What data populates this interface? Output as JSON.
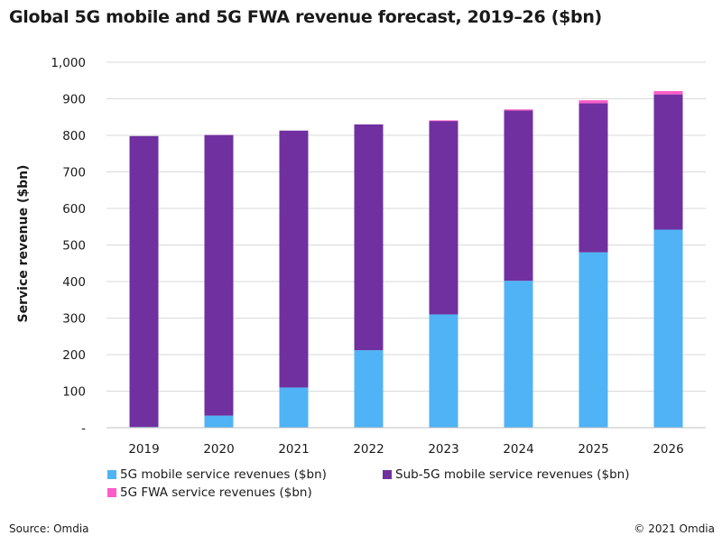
{
  "title": "Global 5G mobile and 5G FWA revenue forecast, 2019–26 ($bn)",
  "source": "Source: Omdia",
  "copyright": "© 2021 Omdia",
  "chart_data": {
    "type": "bar",
    "stacked": true,
    "title": "Global 5G mobile and 5G FWA revenue forecast, 2019–26 ($bn)",
    "xlabel": "",
    "ylabel": "Service revenue ($bn)",
    "ylim": [
      0,
      1000
    ],
    "yticks": [
      0,
      100,
      200,
      300,
      400,
      500,
      600,
      700,
      800,
      900,
      1000
    ],
    "ytick_labels": [
      "-",
      "100",
      "200",
      "300",
      "400",
      "500",
      "600",
      "700",
      "800",
      "900",
      "1,000"
    ],
    "categories": [
      "2019",
      "2020",
      "2021",
      "2022",
      "2023",
      "2024",
      "2025",
      "2026"
    ],
    "series": [
      {
        "name": "5G mobile service revenues ($bn)",
        "color": "#4fb3f5",
        "values": [
          2,
          33,
          110,
          212,
          310,
          402,
          480,
          542
        ]
      },
      {
        "name": "Sub-5G mobile service revenues ($bn)",
        "color": "#7030a0",
        "values": [
          796,
          768,
          703,
          618,
          530,
          466,
          408,
          370
        ]
      },
      {
        "name": "5G FWA service revenues ($bn)",
        "color": "#ff5cc8",
        "values": [
          0,
          0,
          0,
          0,
          1,
          3,
          8,
          9
        ]
      }
    ],
    "grid": true,
    "legend_position": "bottom"
  }
}
